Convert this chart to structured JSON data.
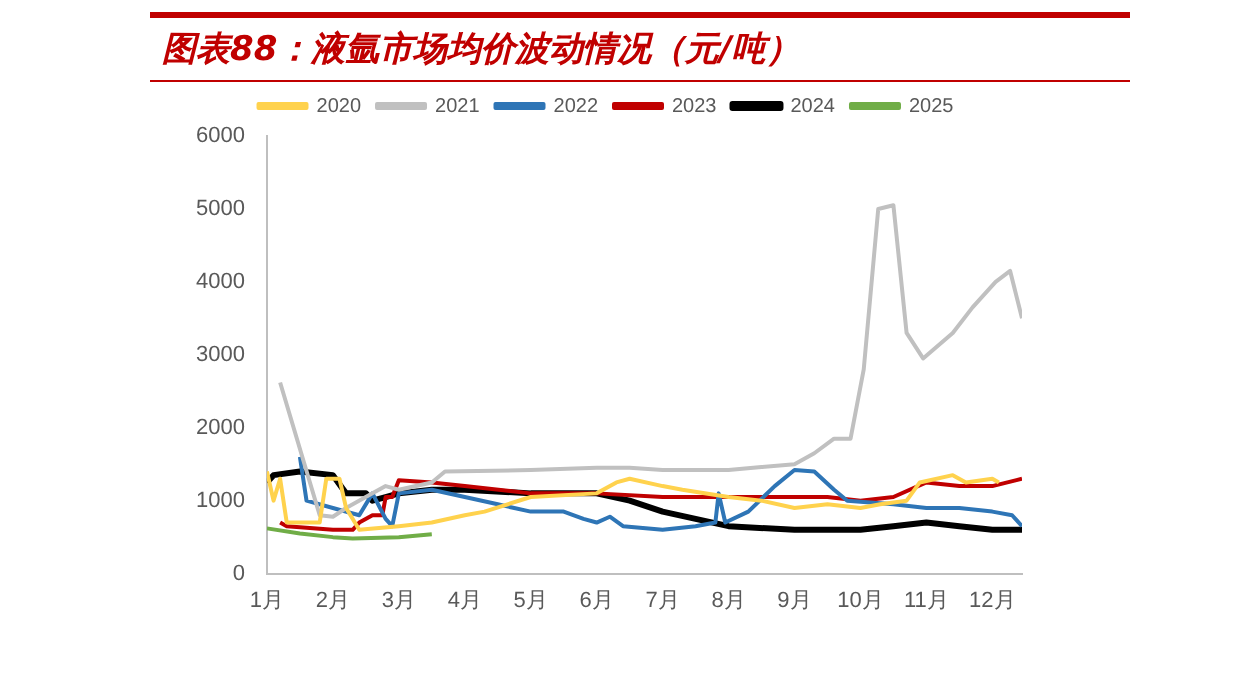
{
  "chart_data": {
    "type": "line",
    "title": "图表88：液氩市场均价波动情况（元/吨）",
    "legend": "top",
    "grid": false,
    "marker": "none",
    "line_style": "solid",
    "xlim": [
      1,
      12.45
    ],
    "xticks": [
      {
        "value": 1,
        "label": "1月"
      },
      {
        "value": 2,
        "label": "2月"
      },
      {
        "value": 3,
        "label": "3月"
      },
      {
        "value": 4,
        "label": "4月"
      },
      {
        "value": 5,
        "label": "5月"
      },
      {
        "value": 6,
        "label": "6月"
      },
      {
        "value": 7,
        "label": "7月"
      },
      {
        "value": 8,
        "label": "8月"
      },
      {
        "value": 9,
        "label": "9月"
      },
      {
        "value": 10,
        "label": "10月"
      },
      {
        "value": 11,
        "label": "11月"
      },
      {
        "value": 12,
        "label": "12月"
      }
    ],
    "ylim": [
      0,
      6000
    ],
    "yticks": [
      0,
      1000,
      2000,
      3000,
      4000,
      5000,
      6000
    ],
    "series": [
      {
        "name": "2020",
        "color": "#ffd24d",
        "x": [
          1,
          1.1,
          1.2,
          1.3,
          1.8,
          1.9,
          2.1,
          2.2,
          2.4,
          3,
          3.5,
          4,
          4.3,
          5,
          6,
          6.3,
          6.5,
          7,
          7.3,
          8,
          8.5,
          9,
          9.5,
          10,
          10.3,
          10.7,
          10.9,
          11.4,
          11.6,
          12,
          12.1
        ],
        "values": [
          1400,
          1000,
          1300,
          700,
          700,
          1300,
          1300,
          900,
          600,
          650,
          700,
          800,
          850,
          1050,
          1100,
          1250,
          1300,
          1200,
          1150,
          1050,
          1000,
          900,
          950,
          900,
          950,
          1000,
          1250,
          1350,
          1250,
          1300,
          1250
        ]
      },
      {
        "name": "2021",
        "color": "#c0c0c0",
        "x": [
          1.2,
          1.8,
          2,
          2.2,
          2.6,
          2.8,
          3,
          3.5,
          3.7,
          5,
          6,
          6.5,
          7,
          8,
          8.5,
          9,
          9.3,
          9.6,
          9.85,
          10.05,
          10.27,
          10.5,
          10.7,
          10.95,
          11.4,
          11.7,
          12.05,
          12.27,
          12.45
        ],
        "values": [
          2620,
          800,
          780,
          900,
          1100,
          1200,
          1150,
          1250,
          1400,
          1420,
          1450,
          1450,
          1420,
          1420,
          1460,
          1500,
          1650,
          1850,
          1850,
          2800,
          5000,
          5050,
          3300,
          2950,
          3300,
          3650,
          4000,
          4150,
          3500
        ]
      },
      {
        "name": "2022",
        "color": "#2e75b6",
        "x": [
          1.5,
          1.6,
          2,
          2.4,
          2.6,
          2.8,
          2.9,
          3,
          3.5,
          4,
          4.5,
          5,
          5.5,
          5.8,
          6,
          6.2,
          6.4,
          7,
          7.5,
          7.8,
          7.85,
          7.95,
          8.3,
          8.7,
          9,
          9.3,
          9.6,
          9.8,
          10.5,
          11,
          11.5,
          12,
          12.3,
          12.45
        ],
        "values": [
          1600,
          1000,
          900,
          800,
          1100,
          750,
          650,
          1100,
          1150,
          1050,
          950,
          850,
          850,
          750,
          700,
          780,
          650,
          600,
          650,
          700,
          1100,
          700,
          850,
          1200,
          1420,
          1400,
          1150,
          1000,
          950,
          900,
          900,
          850,
          800,
          650
        ]
      },
      {
        "name": "2023",
        "color": "#c00000",
        "x": [
          1.2,
          1.3,
          2,
          2.3,
          2.4,
          2.6,
          2.75,
          2.8,
          2.9,
          3,
          3.5,
          4,
          5,
          6,
          7,
          8,
          9,
          9.5,
          10,
          10.5,
          11,
          11.5,
          12,
          12.45
        ],
        "values": [
          700,
          650,
          600,
          600,
          700,
          800,
          800,
          1050,
          1050,
          1280,
          1250,
          1200,
          1100,
          1100,
          1050,
          1050,
          1050,
          1050,
          1000,
          1050,
          1250,
          1200,
          1200,
          1300
        ]
      },
      {
        "name": "2024",
        "color": "#000000",
        "x": [
          1,
          1.1,
          1.5,
          2,
          2.2,
          2.5,
          2.6,
          2.8,
          3,
          3.5,
          4,
          5,
          6,
          6.5,
          7,
          7.5,
          8,
          9,
          10,
          10.5,
          11,
          11.5,
          12,
          12.45
        ],
        "values": [
          1250,
          1350,
          1400,
          1350,
          1100,
          1100,
          1000,
          1050,
          1100,
          1150,
          1150,
          1100,
          1100,
          1000,
          850,
          750,
          650,
          600,
          600,
          650,
          700,
          650,
          600,
          600
        ]
      },
      {
        "name": "2025",
        "color": "#70ad47",
        "x": [
          1,
          1.5,
          2,
          2.3,
          3,
          3.5
        ],
        "values": [
          620,
          550,
          500,
          480,
          500,
          540
        ]
      }
    ]
  }
}
